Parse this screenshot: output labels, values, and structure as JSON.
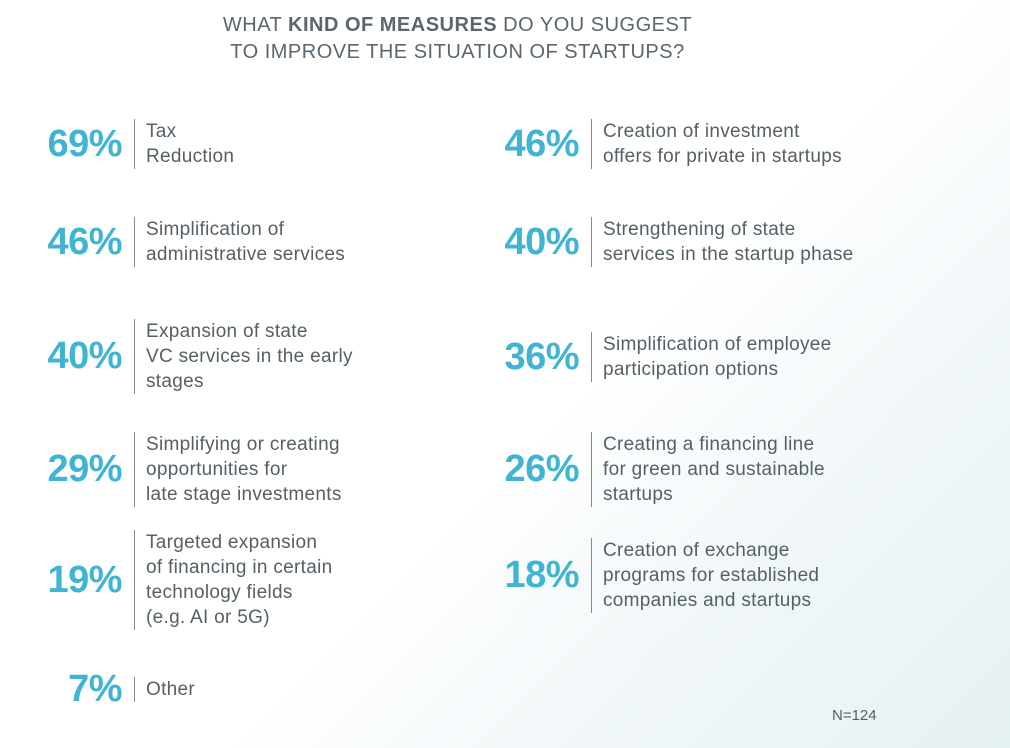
{
  "title": {
    "pre": "WHAT ",
    "bold": "KIND OF MEASURES",
    "post": " DO YOU SUGGEST",
    "line2": "TO IMPROVE THE SITUATION OF STARTUPS?"
  },
  "sample_size": "N=124",
  "colors": {
    "accent": "#41b4d3",
    "text": "#555f66"
  },
  "chart_data": {
    "type": "table",
    "title": "WHAT KIND OF MEASURES DO YOU SUGGEST TO IMPROVE THE SITUATION OF STARTUPS?",
    "unit": "%",
    "items": [
      {
        "value": 69,
        "label": "69%",
        "text": [
          "Tax",
          "Reduction"
        ]
      },
      {
        "value": 46,
        "label": "46%",
        "text": [
          "Simplification of",
          "administrative services"
        ]
      },
      {
        "value": 40,
        "label": "40%",
        "text": [
          "Expansion of state",
          "VC services in the early",
          "stages"
        ]
      },
      {
        "value": 29,
        "label": "29%",
        "text": [
          "Simplifying or creating",
          "opportunities for",
          "late stage investments"
        ]
      },
      {
        "value": 19,
        "label": "19%",
        "text": [
          "Targeted expansion",
          "of financing in certain",
          "technology fields",
          "(e.g. AI or 5G)"
        ]
      },
      {
        "value": 7,
        "label": "7%",
        "text": [
          "Other"
        ]
      },
      {
        "value": 46,
        "label": "46%",
        "text": [
          "Creation of investment",
          "offers for private in startups"
        ]
      },
      {
        "value": 40,
        "label": "40%",
        "text": [
          "Strengthening of state",
          "services in the startup phase"
        ]
      },
      {
        "value": 36,
        "label": "36%",
        "text": [
          "Simplification of employee",
          "participation options"
        ]
      },
      {
        "value": 26,
        "label": "26%",
        "text": [
          "Creating a financing line",
          "for green and sustainable",
          "startups"
        ]
      },
      {
        "value": 18,
        "label": "18%",
        "text": [
          "Creation of exchange",
          "programs for established",
          "companies and startups"
        ]
      }
    ]
  }
}
